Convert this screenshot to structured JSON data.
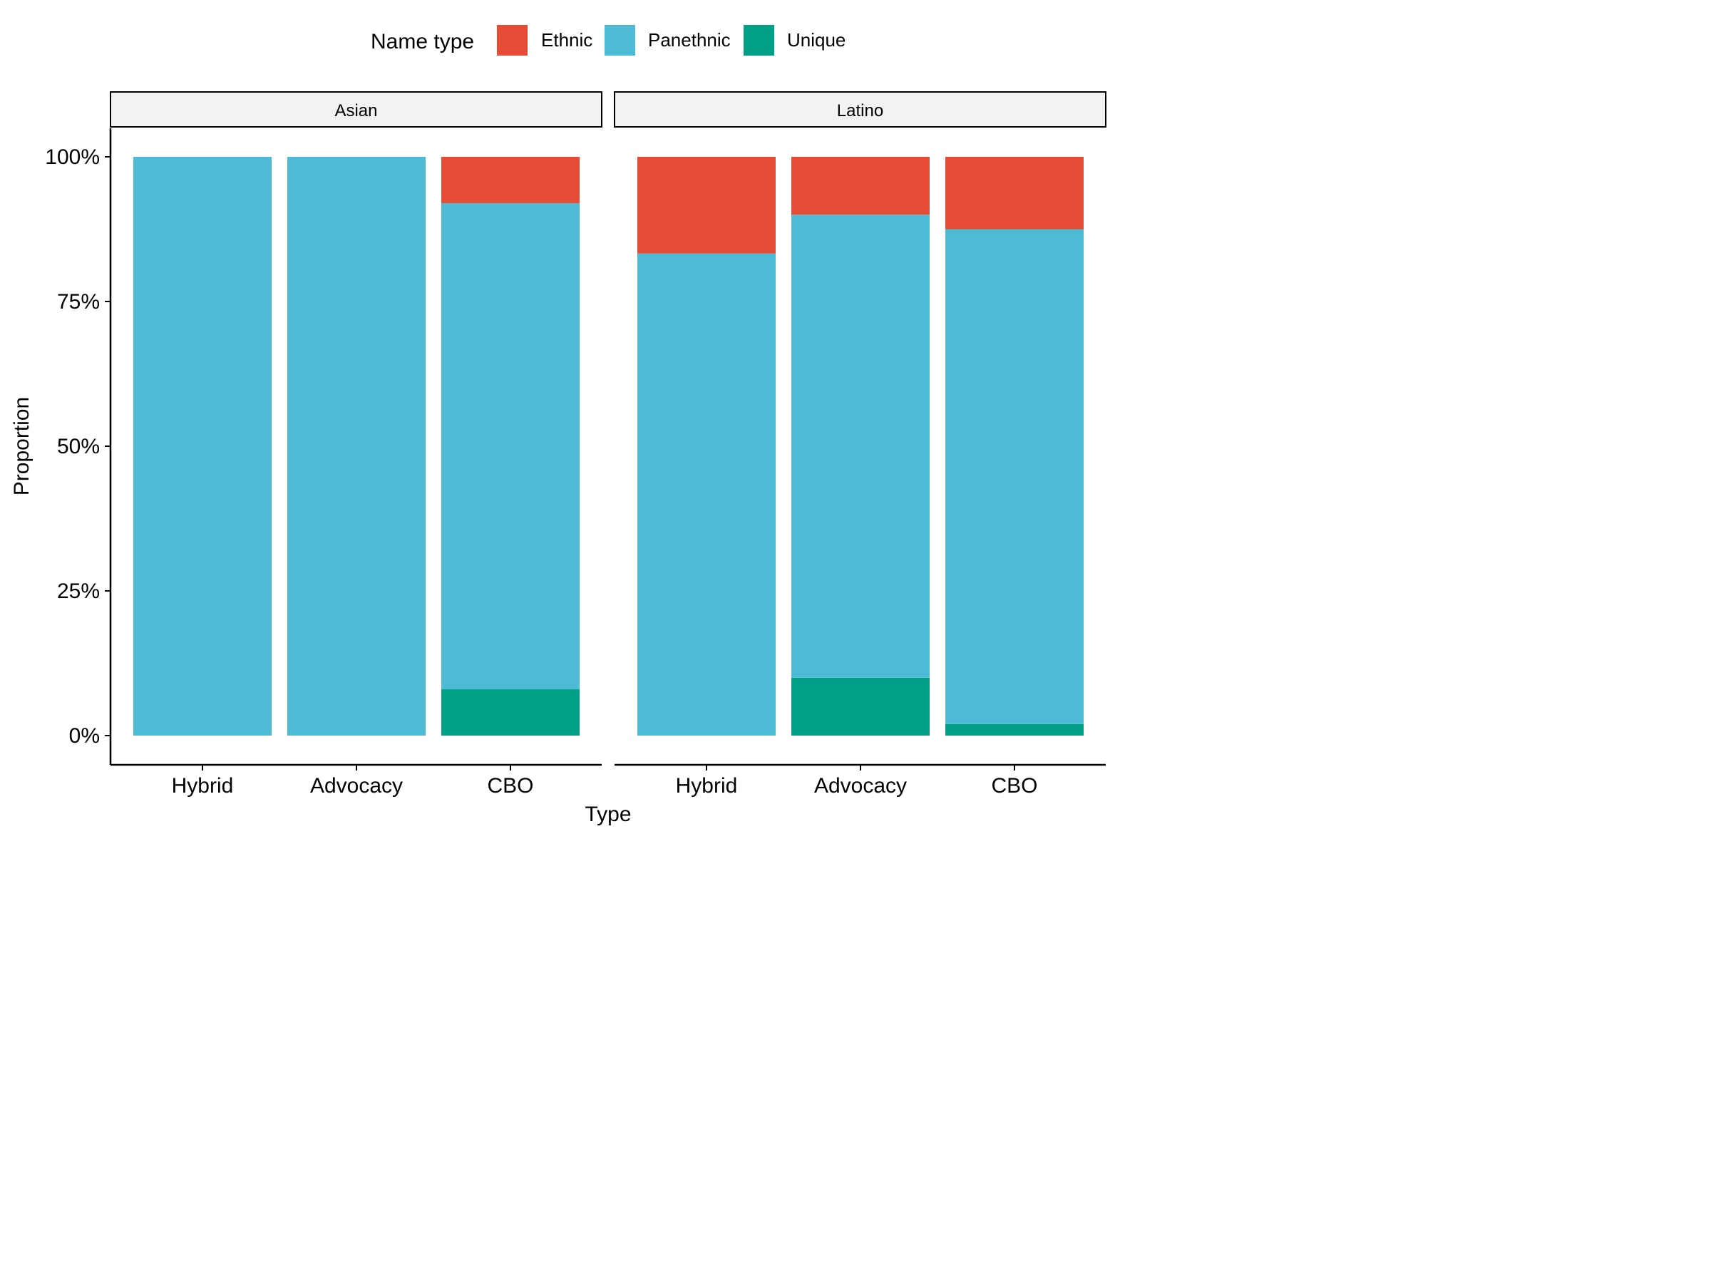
{
  "chart_data": {
    "type": "bar",
    "stacked": true,
    "xlabel": "Type",
    "ylabel": "Proportion",
    "ylim": [
      0,
      1
    ],
    "y_ticks": [
      "0%",
      "25%",
      "50%",
      "75%",
      "100%"
    ],
    "categories": [
      "Hybrid",
      "Advocacy",
      "CBO"
    ],
    "legend": {
      "title": "Name type",
      "position": "top",
      "items": [
        {
          "name": "Ethnic",
          "color": "#E64B35"
        },
        {
          "name": "Panethnic",
          "color": "#4DBBD5"
        },
        {
          "name": "Unique",
          "color": "#00A087"
        }
      ]
    },
    "grid": false,
    "panels": [
      {
        "title": "Asian",
        "series": [
          {
            "name": "Unique",
            "values": [
              0,
              0,
              0.08
            ]
          },
          {
            "name": "Panethnic",
            "values": [
              1,
              1,
              0.84
            ]
          },
          {
            "name": "Ethnic",
            "values": [
              0,
              0,
              0.08
            ]
          }
        ]
      },
      {
        "title": "Latino",
        "series": [
          {
            "name": "Unique",
            "values": [
              0,
              0.1,
              0.02
            ]
          },
          {
            "name": "Panethnic",
            "values": [
              0.833,
              0.8,
              0.855
            ]
          },
          {
            "name": "Ethnic",
            "values": [
              0.167,
              0.1,
              0.125
            ]
          }
        ]
      }
    ]
  }
}
